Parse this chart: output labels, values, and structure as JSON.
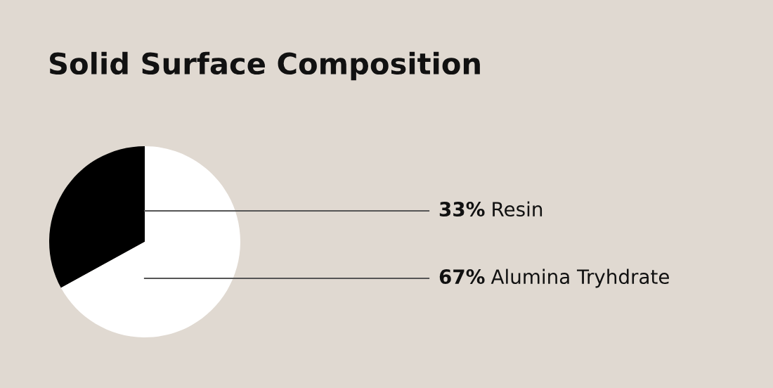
{
  "chart_data": {
    "type": "pie",
    "title": "Solid Surface Composition",
    "categories": [
      "Resin",
      "Alumina Tryhdrate"
    ],
    "values": [
      33,
      67
    ],
    "value_labels": [
      "33%",
      "67%"
    ],
    "colors": [
      "#000000",
      "#ffffff"
    ],
    "legend": false
  }
}
